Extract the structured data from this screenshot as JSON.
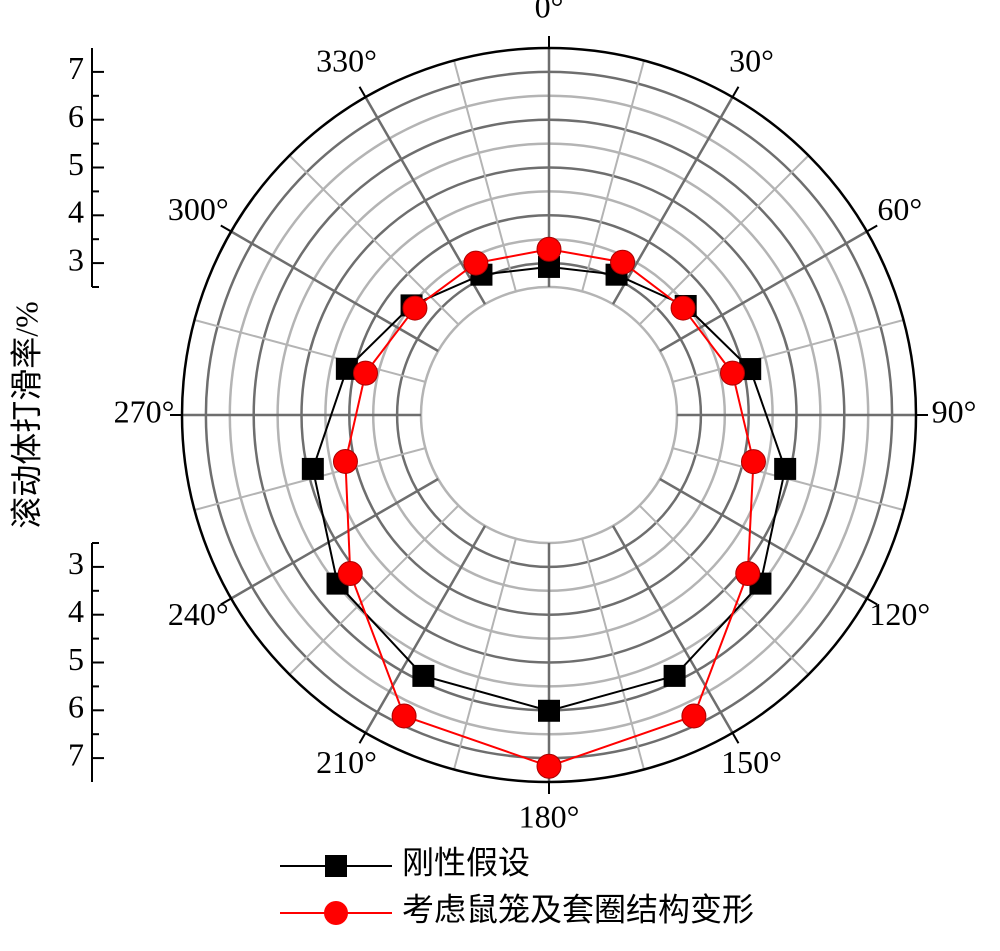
{
  "chart_data": {
    "type": "polar",
    "y_label": "滚动体打滑率/%",
    "x": [
      0,
      25.71,
      51.43,
      77.14,
      102.86,
      128.57,
      154.29,
      180,
      205.71,
      231.43,
      257.14,
      282.86,
      308.57,
      334.29
    ],
    "xticks": [
      {
        "value": 0,
        "label": "0°"
      },
      {
        "value": 30,
        "label": "30°"
      },
      {
        "value": 60,
        "label": "60°"
      },
      {
        "value": 90,
        "label": "90°"
      },
      {
        "value": 120,
        "label": "120°"
      },
      {
        "value": 150,
        "label": "150°"
      },
      {
        "value": 180,
        "label": "180°"
      },
      {
        "value": 210,
        "label": "210°"
      },
      {
        "value": 240,
        "label": "240°"
      },
      {
        "value": 270,
        "label": "270°"
      },
      {
        "value": 300,
        "label": "300°"
      },
      {
        "value": 330,
        "label": "330°"
      }
    ],
    "minor_xticks": [
      15,
      45,
      75,
      105,
      135,
      165,
      195,
      225,
      255,
      285,
      315,
      345
    ],
    "ylim": [
      2.5,
      7.5
    ],
    "yticks": [
      3,
      4,
      5,
      6,
      7
    ],
    "minor_yticks": [
      2.5,
      3.5,
      4.5,
      5.5,
      6.5
    ],
    "grid": true,
    "legend": "bottom",
    "series": [
      {
        "name": "刚性假设",
        "color": "#000000",
        "marker": "square",
        "values": [
          2.92,
          3.08,
          3.48,
          4.14,
          4.89,
          5.48,
          5.88,
          6.01,
          5.88,
          5.48,
          4.89,
          4.16,
          3.5,
          3.08
        ]
      },
      {
        "name": "考虑鼠笼及套圈结构变形",
        "color": "#ff0000",
        "marker": "circle",
        "values": [
          3.29,
          3.37,
          3.41,
          3.76,
          4.21,
          5.14,
          6.81,
          7.17,
          6.81,
          5.14,
          4.19,
          3.76,
          3.41,
          3.35
        ]
      }
    ]
  }
}
